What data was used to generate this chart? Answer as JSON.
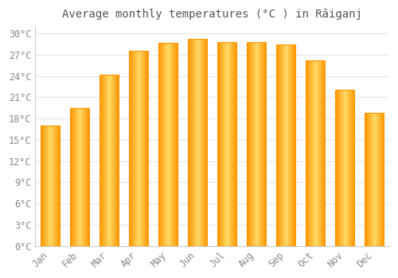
{
  "title": "Average monthly temperatures (°C ) in Rāiganj",
  "months": [
    "Jan",
    "Feb",
    "Mar",
    "Apr",
    "May",
    "Jun",
    "Jul",
    "Aug",
    "Sep",
    "Oct",
    "Nov",
    "Dec"
  ],
  "values": [
    17.0,
    19.5,
    24.2,
    27.5,
    28.7,
    29.2,
    28.8,
    28.8,
    28.5,
    26.2,
    22.0,
    18.8
  ],
  "bar_color_face": "#FFBB00",
  "bar_color_edge": "#FF9500",
  "background_color": "#FFFFFF",
  "plot_bg_color": "#FFFFFF",
  "grid_color": "#E8E8E8",
  "text_color": "#888888",
  "title_color": "#555555",
  "ylim": [
    0,
    31
  ],
  "yticks": [
    0,
    3,
    6,
    9,
    12,
    15,
    18,
    21,
    24,
    27,
    30
  ],
  "ytick_labels": [
    "0°C",
    "3°C",
    "6°C",
    "9°C",
    "12°C",
    "15°C",
    "18°C",
    "21°C",
    "24°C",
    "27°C",
    "30°C"
  ],
  "title_fontsize": 10,
  "tick_fontsize": 8.5,
  "bar_width": 0.65
}
